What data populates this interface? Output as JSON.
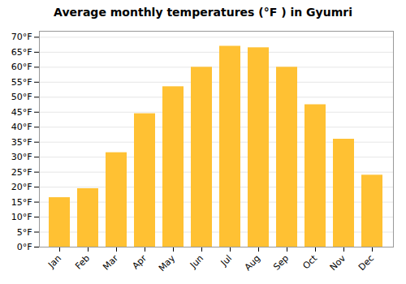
{
  "chart_data": {
    "type": "bar",
    "title": "Average monthly temperatures (°F ) in Gyumri",
    "categories": [
      "Jan",
      "Feb",
      "Mar",
      "Apr",
      "May",
      "Jun",
      "Jul",
      "Aug",
      "Sep",
      "Oct",
      "Nov",
      "Dec"
    ],
    "values": [
      16.5,
      19.5,
      31.5,
      44.5,
      53.5,
      60.0,
      67.0,
      66.5,
      60.0,
      47.5,
      36.0,
      24.0
    ],
    "color": "#FFC133",
    "ylim": [
      0,
      72
    ],
    "yticks": [
      {
        "value": 0,
        "label": "0°F"
      },
      {
        "value": 5,
        "label": "5°F"
      },
      {
        "value": 10,
        "label": "10°F"
      },
      {
        "value": 15,
        "label": "15°F"
      },
      {
        "value": 20,
        "label": "20°F"
      },
      {
        "value": 25,
        "label": "25°F"
      },
      {
        "value": 30,
        "label": "30°F"
      },
      {
        "value": 35,
        "label": "35°F"
      },
      {
        "value": 40,
        "label": "40°F"
      },
      {
        "value": 45,
        "label": "45°F"
      },
      {
        "value": 50,
        "label": "50°F"
      },
      {
        "value": 55,
        "label": "55°F"
      },
      {
        "value": 60,
        "label": "60°F"
      },
      {
        "value": 65,
        "label": "65°F"
      },
      {
        "value": 70,
        "label": "70°F"
      }
    ],
    "grid": true
  }
}
